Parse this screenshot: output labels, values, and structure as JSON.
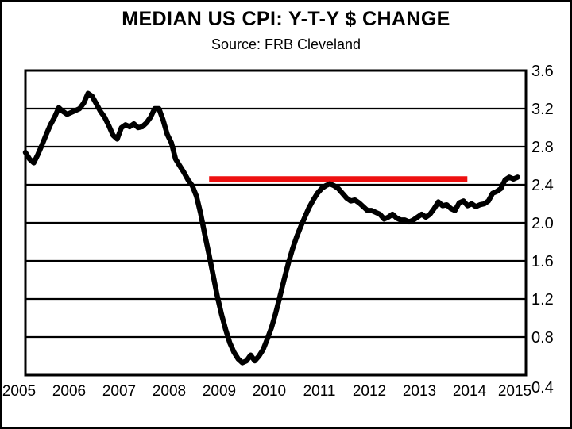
{
  "header": {
    "title": "MEDIAN US CPI: Y-T-Y $ CHANGE",
    "subtitle": "Source: FRB Cleveland"
  },
  "chart_data": {
    "type": "line",
    "title": "MEDIAN US CPI: Y-T-Y $ CHANGE",
    "subtitle": "Source: FRB Cleveland",
    "x_start": 2005,
    "x_step_months": 1,
    "values": [
      2.74,
      2.67,
      2.63,
      2.72,
      2.82,
      2.93,
      3.03,
      3.11,
      3.21,
      3.17,
      3.14,
      3.16,
      3.18,
      3.2,
      3.26,
      3.36,
      3.33,
      3.25,
      3.17,
      3.11,
      3.02,
      2.92,
      2.88,
      3.0,
      3.03,
      3.01,
      3.04,
      3.0,
      3.01,
      3.05,
      3.11,
      3.2,
      3.2,
      3.08,
      2.93,
      2.84,
      2.67,
      2.6,
      2.53,
      2.45,
      2.39,
      2.28,
      2.1,
      1.88,
      1.67,
      1.45,
      1.23,
      1.04,
      0.88,
      0.74,
      0.64,
      0.57,
      0.53,
      0.55,
      0.61,
      0.55,
      0.6,
      0.67,
      0.78,
      0.9,
      1.05,
      1.22,
      1.4,
      1.57,
      1.72,
      1.85,
      1.96,
      2.06,
      2.16,
      2.24,
      2.31,
      2.36,
      2.39,
      2.41,
      2.39,
      2.36,
      2.31,
      2.26,
      2.23,
      2.24,
      2.21,
      2.17,
      2.13,
      2.13,
      2.11,
      2.09,
      2.04,
      2.06,
      2.09,
      2.05,
      2.03,
      2.03,
      2.01,
      2.03,
      2.06,
      2.09,
      2.06,
      2.09,
      2.15,
      2.22,
      2.18,
      2.19,
      2.15,
      2.13,
      2.21,
      2.23,
      2.18,
      2.2,
      2.17,
      2.19,
      2.2,
      2.23,
      2.31,
      2.33,
      2.36,
      2.45,
      2.48,
      2.46,
      2.48
    ],
    "reference_line": {
      "value": 2.46,
      "x_from": 2008.67,
      "x_to": 2013.83,
      "color": "#ee1010"
    },
    "x_ticks": [
      2005,
      2006,
      2007,
      2008,
      2009,
      2010,
      2011,
      2012,
      2013,
      2014,
      2015
    ],
    "y_ticks": [
      0.4,
      0.8,
      1.2,
      1.6,
      2.0,
      2.4,
      2.8,
      3.2,
      3.6
    ],
    "xlim": [
      2005,
      2015
    ],
    "ylim": [
      0.4,
      3.6
    ],
    "grid": "horizontal",
    "y_axis_side": "right",
    "legend": "none",
    "colors": {
      "series": "#000000",
      "reference": "#ee1010",
      "frame": "#000000"
    }
  }
}
